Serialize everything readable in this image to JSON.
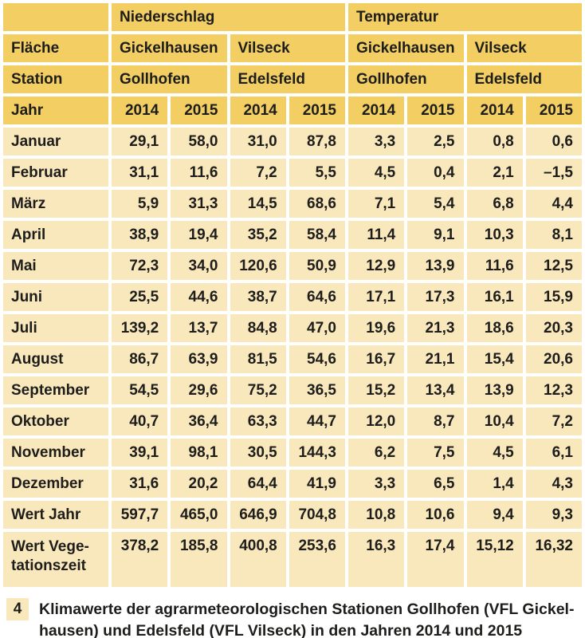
{
  "table": {
    "column_groups": [
      {
        "label": "Niederschlag"
      },
      {
        "label": "Temperatur"
      }
    ],
    "header_rows": {
      "flaeche": {
        "label": "Fläche",
        "cells": [
          "Gickelhausen",
          "Vilseck",
          "Gickelhausen",
          "Vilseck"
        ]
      },
      "station": {
        "label": "Station",
        "cells": [
          "Gollhofen",
          "Edelsfeld",
          "Gollhofen",
          "Edelsfeld"
        ]
      },
      "jahr": {
        "label": "Jahr",
        "cells": [
          "2014",
          "2015",
          "2014",
          "2015",
          "2014",
          "2015",
          "2014",
          "2015"
        ]
      }
    },
    "rows": [
      {
        "label": "Januar",
        "values": [
          "29,1",
          "58,0",
          "31,0",
          "87,8",
          "3,3",
          "2,5",
          "0,8",
          "0,6"
        ]
      },
      {
        "label": "Februar",
        "values": [
          "31,1",
          "11,6",
          "7,2",
          "5,5",
          "4,5",
          "0,4",
          "2,1",
          "–1,5"
        ]
      },
      {
        "label": "März",
        "values": [
          "5,9",
          "31,3",
          "14,5",
          "68,6",
          "7,1",
          "5,4",
          "6,8",
          "4,4"
        ]
      },
      {
        "label": "April",
        "values": [
          "38,9",
          "19,4",
          "35,2",
          "58,4",
          "11,4",
          "9,1",
          "10,3",
          "8,1"
        ]
      },
      {
        "label": "Mai",
        "values": [
          "72,3",
          "34,0",
          "120,6",
          "50,9",
          "12,9",
          "13,9",
          "11,6",
          "12,5"
        ]
      },
      {
        "label": "Juni",
        "values": [
          "25,5",
          "44,6",
          "38,7",
          "64,6",
          "17,1",
          "17,3",
          "16,1",
          "15,9"
        ]
      },
      {
        "label": "Juli",
        "values": [
          "139,2",
          "13,7",
          "84,8",
          "47,0",
          "19,6",
          "21,3",
          "18,6",
          "20,3"
        ]
      },
      {
        "label": "August",
        "values": [
          "86,7",
          "63,9",
          "81,5",
          "54,6",
          "16,7",
          "21,1",
          "15,4",
          "20,6"
        ]
      },
      {
        "label": "September",
        "values": [
          "54,5",
          "29,6",
          "75,2",
          "36,5",
          "15,2",
          "13,4",
          "13,9",
          "12,3"
        ]
      },
      {
        "label": "Oktober",
        "values": [
          "40,7",
          "36,4",
          "63,3",
          "44,7",
          "12,0",
          "8,7",
          "10,4",
          "7,2"
        ]
      },
      {
        "label": "November",
        "values": [
          "39,1",
          "98,1",
          "30,5",
          "144,3",
          "6,2",
          "7,5",
          "4,5",
          "6,1"
        ]
      },
      {
        "label": "Dezember",
        "values": [
          "31,6",
          "20,2",
          "64,4",
          "41,9",
          "3,3",
          "6,5",
          "1,4",
          "4,3"
        ]
      },
      {
        "label": "Wert Jahr",
        "values": [
          "597,7",
          "465,0",
          "646,9",
          "704,8",
          "10,8",
          "10,6",
          "9,4",
          "9,3"
        ]
      },
      {
        "label": "Wert Vege-\ntationszeit",
        "values": [
          "378,2",
          "185,8",
          "400,8",
          "253,6",
          "16,3",
          "17,4",
          "15,12",
          "16,32"
        ]
      }
    ]
  },
  "caption": {
    "number": "4",
    "text": "Klimawerte der agrarmeteorologischen Stationen Gollhofen (VFL Gickel-\nhausen) und Edelsfeld (VFL Vilseck) in den Jahren 2014 und 2015"
  },
  "colors": {
    "header_gold": "#F2CE63",
    "body_cream": "#FAE8BD",
    "text": "#1d1d1b",
    "gap": "#ffffff"
  }
}
